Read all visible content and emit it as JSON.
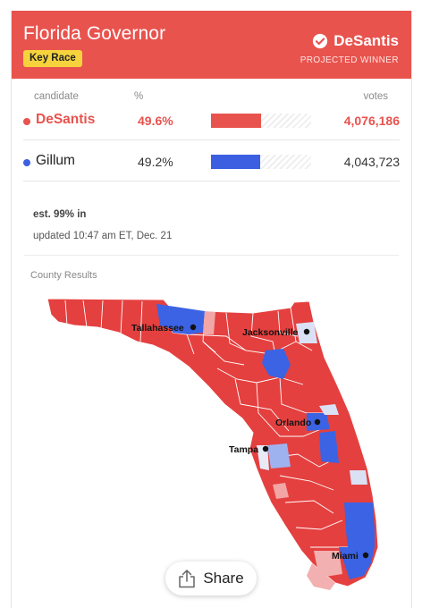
{
  "header": {
    "title": "Florida Governor",
    "badge": "Key Race",
    "winner_name": "DeSantis",
    "winner_label": "PROJECTED WINNER",
    "background_color": "#e8534e",
    "badge_color": "#f6d33c"
  },
  "table": {
    "col_candidate": "candidate",
    "col_percent": "%",
    "col_votes": "votes",
    "rows": [
      {
        "name": "DeSantis",
        "percent": "49.6%",
        "votes": "4,076,186",
        "share": 0.496,
        "color": "#e8534e",
        "winner": true
      },
      {
        "name": "Gillum",
        "percent": "49.2%",
        "votes": "4,043,723",
        "share": 0.492,
        "color": "#3b5fe0",
        "winner": false
      }
    ]
  },
  "reporting": "est. 99% in",
  "updated": "updated 10:47 am ET, Dec. 21",
  "map": {
    "title": "County Results",
    "colors": {
      "republican": "#e4403f",
      "democrat": "#3b63e3",
      "rep_lean": "#f3a6a6",
      "dem_lean": "#9fb2f0"
    },
    "cities": [
      "Tallahassee",
      "Jacksonville",
      "Orlando",
      "Tampa",
      "Miami"
    ]
  },
  "share_label": "Share",
  "icons": {
    "check": "check-circle-icon",
    "share": "share-icon"
  }
}
